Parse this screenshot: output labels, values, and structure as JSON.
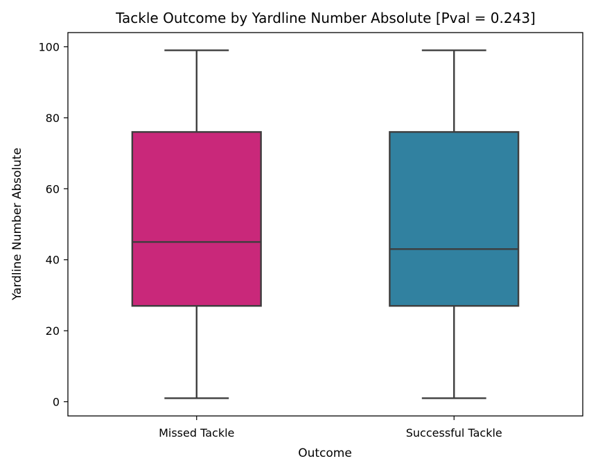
{
  "chart_data": {
    "type": "box",
    "title": "Tackle Outcome by Yardline Number Absolute [Pval = 0.243]",
    "xlabel": "Outcome",
    "ylabel": "Yardline Number Absolute",
    "ylim": [
      -4,
      104
    ],
    "yticks": [
      0,
      20,
      40,
      60,
      80,
      100
    ],
    "grid": false,
    "categories": [
      "Missed Tackle",
      "Successful Tackle"
    ],
    "boxes": [
      {
        "category": "Missed Tackle",
        "min": 1,
        "q1": 27,
        "median": 45,
        "q3": 76,
        "max": 99,
        "color": "#c9287a"
      },
      {
        "category": "Successful Tackle",
        "min": 1,
        "q1": 27,
        "median": 43,
        "q3": 76,
        "max": 99,
        "color": "#3181a0"
      }
    ]
  }
}
